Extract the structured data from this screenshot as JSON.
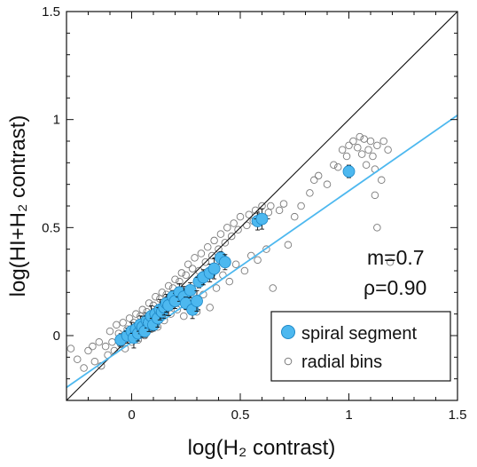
{
  "chart_data": {
    "type": "scatter",
    "title": "",
    "xlabel": "log(H₂ contrast)",
    "ylabel": "log(HI+H₂ contrast)",
    "xlim": [
      -0.3,
      1.5
    ],
    "ylim": [
      -0.3,
      1.5
    ],
    "xticks": [
      "0",
      "0.5",
      "1",
      "1.5"
    ],
    "yticks": [
      "0",
      "0.5",
      "1",
      "1.5"
    ],
    "annotations": [
      "m=0.7",
      "ρ=0.90"
    ],
    "legend": {
      "placement": "bottom-right",
      "entries": [
        "spiral segment",
        "radial bins"
      ]
    },
    "reference_line": {
      "name": "one-to-one",
      "slope": 1,
      "intercept": 0,
      "color": "#111111"
    },
    "fit_line": {
      "slope": 0.7,
      "intercept": -0.03,
      "color": "#4db8ef"
    },
    "series": [
      {
        "name": "spiral segment",
        "marker": "filled-circle",
        "color": "#4db8ef",
        "points": [
          [
            -0.05,
            -0.02
          ],
          [
            -0.02,
            0.0
          ],
          [
            0.0,
            0.02
          ],
          [
            0.01,
            -0.01
          ],
          [
            0.02,
            0.03
          ],
          [
            0.03,
            0.01
          ],
          [
            0.04,
            0.05
          ],
          [
            0.05,
            0.04
          ],
          [
            0.06,
            0.02
          ],
          [
            0.07,
            0.07
          ],
          [
            0.08,
            0.06
          ],
          [
            0.09,
            0.09
          ],
          [
            0.1,
            0.05
          ],
          [
            0.11,
            0.1
          ],
          [
            0.12,
            0.08
          ],
          [
            0.13,
            0.12
          ],
          [
            0.14,
            0.11
          ],
          [
            0.15,
            0.13
          ],
          [
            0.16,
            0.15
          ],
          [
            0.17,
            0.14
          ],
          [
            0.19,
            0.18
          ],
          [
            0.2,
            0.16
          ],
          [
            0.22,
            0.2
          ],
          [
            0.24,
            0.18
          ],
          [
            0.25,
            0.15
          ],
          [
            0.27,
            0.21
          ],
          [
            0.28,
            0.12
          ],
          [
            0.3,
            0.16
          ],
          [
            0.31,
            0.25
          ],
          [
            0.33,
            0.27
          ],
          [
            0.36,
            0.29
          ],
          [
            0.38,
            0.31
          ],
          [
            0.41,
            0.36
          ],
          [
            0.43,
            0.34
          ],
          [
            0.58,
            0.53
          ],
          [
            0.6,
            0.54
          ],
          [
            1.0,
            0.76
          ]
        ]
      },
      {
        "name": "radial bins",
        "marker": "open-circle",
        "color": "#7a7a7a",
        "points": [
          [
            -0.28,
            -0.06
          ],
          [
            -0.25,
            -0.11
          ],
          [
            -0.22,
            -0.15
          ],
          [
            -0.2,
            -0.07
          ],
          [
            -0.18,
            -0.05
          ],
          [
            -0.17,
            -0.12
          ],
          [
            -0.15,
            -0.03
          ],
          [
            -0.14,
            -0.14
          ],
          [
            -0.12,
            -0.05
          ],
          [
            -0.11,
            -0.09
          ],
          [
            -0.1,
            0.02
          ],
          [
            -0.09,
            -0.03
          ],
          [
            -0.08,
            -0.07
          ],
          [
            -0.07,
            0.05
          ],
          [
            -0.06,
            0.01
          ],
          [
            -0.05,
            -0.04
          ],
          [
            -0.04,
            0.06
          ],
          [
            -0.03,
            -0.06
          ],
          [
            -0.02,
            0.03
          ],
          [
            -0.01,
            0.08
          ],
          [
            0.0,
            -0.03
          ],
          [
            0.01,
            0.06
          ],
          [
            0.02,
            0.1
          ],
          [
            0.03,
            -0.02
          ],
          [
            0.04,
            0.09
          ],
          [
            0.05,
            0.12
          ],
          [
            0.06,
            0.0
          ],
          [
            0.07,
            0.11
          ],
          [
            0.08,
            0.15
          ],
          [
            0.09,
            0.03
          ],
          [
            0.1,
            0.14
          ],
          [
            0.11,
            0.18
          ],
          [
            0.12,
            0.04
          ],
          [
            0.13,
            0.17
          ],
          [
            0.14,
            0.2
          ],
          [
            0.15,
            0.07
          ],
          [
            0.16,
            0.19
          ],
          [
            0.17,
            0.23
          ],
          [
            0.18,
            0.1
          ],
          [
            0.19,
            0.22
          ],
          [
            0.2,
            0.26
          ],
          [
            0.21,
            0.12
          ],
          [
            0.22,
            0.25
          ],
          [
            0.23,
            0.29
          ],
          [
            0.24,
            0.09
          ],
          [
            0.25,
            0.28
          ],
          [
            0.26,
            0.33
          ],
          [
            0.27,
            0.14
          ],
          [
            0.28,
            0.31
          ],
          [
            0.29,
            0.36
          ],
          [
            0.3,
            0.11
          ],
          [
            0.31,
            0.3
          ],
          [
            0.32,
            0.38
          ],
          [
            0.33,
            0.19
          ],
          [
            0.34,
            0.34
          ],
          [
            0.35,
            0.41
          ],
          [
            0.36,
            0.13
          ],
          [
            0.37,
            0.37
          ],
          [
            0.38,
            0.44
          ],
          [
            0.39,
            0.22
          ],
          [
            0.4,
            0.4
          ],
          [
            0.41,
            0.47
          ],
          [
            0.42,
            0.28
          ],
          [
            0.43,
            0.43
          ],
          [
            0.44,
            0.5
          ],
          [
            0.45,
            0.25
          ],
          [
            0.46,
            0.46
          ],
          [
            0.47,
            0.52
          ],
          [
            0.48,
            0.33
          ],
          [
            0.49,
            0.49
          ],
          [
            0.5,
            0.55
          ],
          [
            0.52,
            0.3
          ],
          [
            0.53,
            0.51
          ],
          [
            0.54,
            0.56
          ],
          [
            0.55,
            0.37
          ],
          [
            0.56,
            0.53
          ],
          [
            0.57,
            0.58
          ],
          [
            0.58,
            0.35
          ],
          [
            0.59,
            0.55
          ],
          [
            0.6,
            0.6
          ],
          [
            0.62,
            0.4
          ],
          [
            0.63,
            0.57
          ],
          [
            0.64,
            0.6
          ],
          [
            0.65,
            0.22
          ],
          [
            0.68,
            0.58
          ],
          [
            0.7,
            0.61
          ],
          [
            0.72,
            0.42
          ],
          [
            0.75,
            0.55
          ],
          [
            0.78,
            0.6
          ],
          [
            0.82,
            0.66
          ],
          [
            0.84,
            0.72
          ],
          [
            0.86,
            0.74
          ],
          [
            0.9,
            0.7
          ],
          [
            0.93,
            0.79
          ],
          [
            0.95,
            0.78
          ],
          [
            0.97,
            0.86
          ],
          [
            0.99,
            0.83
          ],
          [
            1.0,
            0.88
          ],
          [
            1.02,
            0.9
          ],
          [
            1.04,
            0.87
          ],
          [
            1.05,
            0.92
          ],
          [
            1.06,
            0.84
          ],
          [
            1.07,
            0.91
          ],
          [
            1.08,
            0.79
          ],
          [
            1.09,
            0.86
          ],
          [
            1.1,
            0.9
          ],
          [
            1.11,
            0.83
          ],
          [
            1.12,
            0.77
          ],
          [
            1.12,
            0.65
          ],
          [
            1.13,
            0.88
          ],
          [
            1.13,
            0.5
          ],
          [
            1.15,
            0.72
          ],
          [
            1.16,
            0.9
          ],
          [
            1.18,
            0.86
          ],
          [
            1.19,
            0.34
          ]
        ]
      }
    ]
  }
}
